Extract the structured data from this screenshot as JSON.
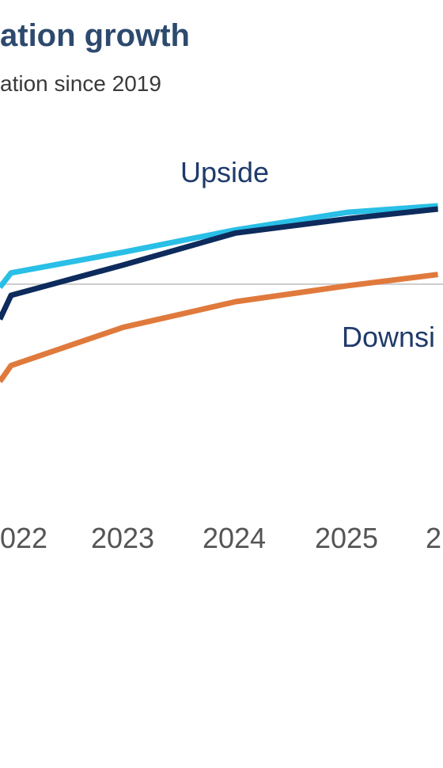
{
  "chart_data": {
    "type": "line",
    "title": "ation growth",
    "subtitle": "ation since 2019",
    "x_ticks": [
      "022",
      "2023",
      "2024",
      "2025",
      "2"
    ],
    "x": [
      2021.9,
      2022,
      2023,
      2024,
      2025,
      2025.8
    ],
    "series": [
      {
        "name": "Upside",
        "color": "#29bfe6",
        "values": [
          100.8,
          101.7,
          103.0,
          104.4,
          105.5,
          105.9
        ]
      },
      {
        "name": "",
        "color": "#0d2b5c",
        "values": [
          98.8,
          100.3,
          102.2,
          104.2,
          105.1,
          105.7
        ]
      },
      {
        "name": "Downsi",
        "color": "#e07a3c",
        "values": [
          94.9,
          95.9,
          98.3,
          99.9,
          100.9,
          101.6
        ]
      }
    ],
    "reference_line": 101.0,
    "grid": false
  }
}
